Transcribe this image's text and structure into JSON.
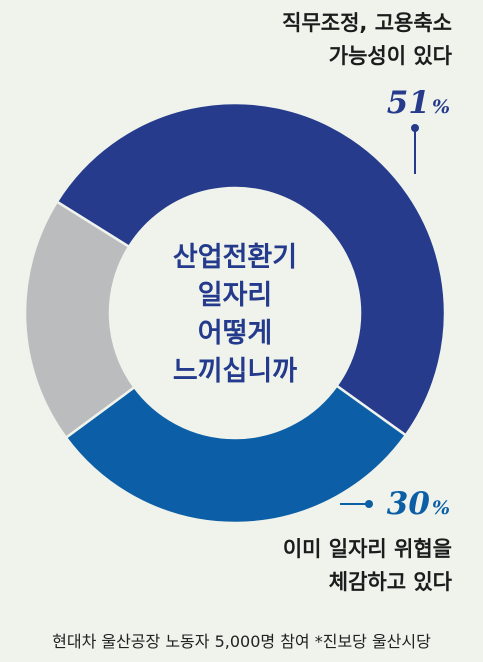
{
  "chart_data": {
    "type": "donut",
    "center_lines": [
      "산업전환기",
      "일자리",
      "어떻게",
      "느끼십니까"
    ],
    "slices": [
      {
        "label_lines": [
          "직무조정, 고용축소",
          "가능성이 있다"
        ],
        "value": 51,
        "color": "#273b8c"
      },
      {
        "label_lines": [
          "이미 일자리 위협을",
          "체감하고 있다"
        ],
        "value": 30,
        "color": "#0c5fa6"
      },
      {
        "label_lines": [],
        "value": 19,
        "color": "#bbbcbe"
      }
    ],
    "unit": "%"
  },
  "footer": "현대차 울산공장 노동자 5,000명 참여 *진보당 울산시당"
}
